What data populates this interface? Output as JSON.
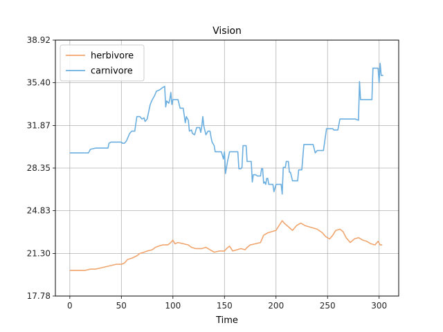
{
  "chart_data": {
    "type": "line",
    "title": "Vision",
    "xlabel": "Time",
    "ylabel": "",
    "xlim": [
      -14,
      319
    ],
    "ylim": [
      17.78,
      38.92
    ],
    "xticks": [
      0,
      50,
      100,
      150,
      200,
      250,
      300
    ],
    "yticks": [
      17.78,
      21.3,
      24.83,
      28.35,
      31.87,
      35.4,
      38.92
    ],
    "ytick_labels": [
      "17.78",
      "21.30",
      "24.83",
      "28.35",
      "31.87",
      "35.40",
      "38.92"
    ],
    "grid": true,
    "legend_position": "upper-left",
    "series": [
      {
        "name": "herbivore",
        "color": "#f0a46c",
        "points": [
          [
            0,
            19.9
          ],
          [
            10,
            19.9
          ],
          [
            15,
            19.9
          ],
          [
            20,
            20.0
          ],
          [
            25,
            20.0
          ],
          [
            30,
            20.1
          ],
          [
            35,
            20.2
          ],
          [
            40,
            20.3
          ],
          [
            45,
            20.4
          ],
          [
            50,
            20.4
          ],
          [
            53,
            20.5
          ],
          [
            56,
            20.8
          ],
          [
            60,
            20.9
          ],
          [
            65,
            21.1
          ],
          [
            68,
            21.3
          ],
          [
            72,
            21.4
          ],
          [
            75,
            21.5
          ],
          [
            80,
            21.6
          ],
          [
            83,
            21.8
          ],
          [
            86,
            21.9
          ],
          [
            90,
            22.0
          ],
          [
            95,
            22.0
          ],
          [
            98,
            22.2
          ],
          [
            100,
            22.4
          ],
          [
            102,
            22.1
          ],
          [
            105,
            22.2
          ],
          [
            110,
            22.1
          ],
          [
            115,
            22.0
          ],
          [
            118,
            21.8
          ],
          [
            122,
            21.7
          ],
          [
            128,
            21.7
          ],
          [
            132,
            21.8
          ],
          [
            136,
            21.6
          ],
          [
            140,
            21.4
          ],
          [
            145,
            21.5
          ],
          [
            150,
            21.5
          ],
          [
            152,
            21.7
          ],
          [
            155,
            21.9
          ],
          [
            158,
            21.5
          ],
          [
            162,
            21.6
          ],
          [
            166,
            21.7
          ],
          [
            170,
            21.6
          ],
          [
            172,
            21.8
          ],
          [
            175,
            22.0
          ],
          [
            180,
            22.1
          ],
          [
            185,
            22.2
          ],
          [
            188,
            22.8
          ],
          [
            192,
            23.0
          ],
          [
            196,
            23.1
          ],
          [
            200,
            23.2
          ],
          [
            203,
            23.6
          ],
          [
            206,
            24.0
          ],
          [
            208,
            23.8
          ],
          [
            212,
            23.5
          ],
          [
            216,
            23.2
          ],
          [
            220,
            23.6
          ],
          [
            224,
            23.8
          ],
          [
            228,
            23.6
          ],
          [
            232,
            23.5
          ],
          [
            236,
            23.4
          ],
          [
            240,
            23.3
          ],
          [
            245,
            23.0
          ],
          [
            248,
            22.7
          ],
          [
            252,
            22.5
          ],
          [
            255,
            22.8
          ],
          [
            258,
            23.2
          ],
          [
            262,
            23.3
          ],
          [
            265,
            23.1
          ],
          [
            268,
            22.6
          ],
          [
            272,
            22.2
          ],
          [
            276,
            22.5
          ],
          [
            280,
            22.6
          ],
          [
            284,
            22.4
          ],
          [
            288,
            22.3
          ],
          [
            292,
            22.1
          ],
          [
            296,
            22.0
          ],
          [
            299,
            22.3
          ],
          [
            301,
            22.0
          ],
          [
            303,
            22.0
          ]
        ]
      },
      {
        "name": "carnivore",
        "color": "#6aaee0",
        "points": [
          [
            0,
            29.6
          ],
          [
            18,
            29.6
          ],
          [
            20,
            29.9
          ],
          [
            25,
            30.0
          ],
          [
            37,
            30.0
          ],
          [
            38,
            30.4
          ],
          [
            40,
            30.5
          ],
          [
            50,
            30.5
          ],
          [
            51,
            30.4
          ],
          [
            53,
            30.4
          ],
          [
            55,
            30.6
          ],
          [
            58,
            31.2
          ],
          [
            60,
            31.4
          ],
          [
            63,
            31.4
          ],
          [
            65,
            32.6
          ],
          [
            68,
            32.6
          ],
          [
            70,
            32.4
          ],
          [
            72,
            32.5
          ],
          [
            73,
            32.2
          ],
          [
            75,
            32.4
          ],
          [
            78,
            33.6
          ],
          [
            80,
            34.0
          ],
          [
            82,
            34.3
          ],
          [
            84,
            34.7
          ],
          [
            87,
            34.8
          ],
          [
            90,
            35.0
          ],
          [
            92,
            35.1
          ],
          [
            93,
            33.4
          ],
          [
            94,
            33.9
          ],
          [
            96,
            33.7
          ],
          [
            97,
            34.0
          ],
          [
            98,
            34.6
          ],
          [
            99,
            33.6
          ],
          [
            100,
            34.0
          ],
          [
            105,
            34.0
          ],
          [
            107,
            33.3
          ],
          [
            110,
            33.3
          ],
          [
            112,
            32.1
          ],
          [
            113,
            32.6
          ],
          [
            115,
            32.3
          ],
          [
            116,
            31.4
          ],
          [
            118,
            31.5
          ],
          [
            119,
            31.2
          ],
          [
            121,
            31.1
          ],
          [
            123,
            31.7
          ],
          [
            126,
            31.7
          ],
          [
            127,
            31.3
          ],
          [
            128,
            31.8
          ],
          [
            129,
            32.6
          ],
          [
            130,
            31.8
          ],
          [
            132,
            31.1
          ],
          [
            134,
            31.4
          ],
          [
            136,
            31.4
          ],
          [
            137,
            30.9
          ],
          [
            138,
            30.5
          ],
          [
            140,
            30.2
          ],
          [
            141,
            29.7
          ],
          [
            147,
            29.7
          ],
          [
            149,
            29.1
          ],
          [
            150,
            29.7
          ],
          [
            151,
            27.9
          ],
          [
            153,
            28.9
          ],
          [
            155,
            29.7
          ],
          [
            163,
            29.7
          ],
          [
            164,
            28.3
          ],
          [
            166,
            28.3
          ],
          [
            167,
            28.4
          ],
          [
            168,
            30.2
          ],
          [
            171,
            30.2
          ],
          [
            172,
            28.9
          ],
          [
            176,
            28.9
          ],
          [
            177,
            27.2
          ],
          [
            178,
            27.8
          ],
          [
            180,
            27.8
          ],
          [
            182,
            27.7
          ],
          [
            185,
            27.7
          ],
          [
            186,
            28.3
          ],
          [
            187,
            28.3
          ],
          [
            188,
            27.1
          ],
          [
            189,
            27.2
          ],
          [
            190,
            27.0
          ],
          [
            191,
            27.5
          ],
          [
            192,
            27.5
          ],
          [
            193,
            27.0
          ],
          [
            197,
            27.0
          ],
          [
            198,
            26.4
          ],
          [
            200,
            27.0
          ],
          [
            205,
            27.0
          ],
          [
            206,
            26.2
          ],
          [
            207,
            28.4
          ],
          [
            209,
            28.4
          ],
          [
            210,
            28.9
          ],
          [
            212,
            28.9
          ],
          [
            213,
            28.0
          ],
          [
            214,
            28.0
          ],
          [
            216,
            27.3
          ],
          [
            221,
            27.3
          ],
          [
            222,
            28.2
          ],
          [
            225,
            28.2
          ],
          [
            227,
            30.3
          ],
          [
            236,
            30.3
          ],
          [
            238,
            29.6
          ],
          [
            240,
            29.8
          ],
          [
            246,
            29.8
          ],
          [
            249,
            31.6
          ],
          [
            255,
            31.6
          ],
          [
            256,
            31.5
          ],
          [
            260,
            31.5
          ],
          [
            262,
            32.4
          ],
          [
            270,
            32.4
          ],
          [
            277,
            32.4
          ],
          [
            280,
            32.3
          ],
          [
            281,
            35.5
          ],
          [
            282,
            34.0
          ],
          [
            286,
            34.0
          ],
          [
            293,
            34.0
          ],
          [
            294,
            36.6
          ],
          [
            299,
            36.6
          ],
          [
            300,
            35.4
          ],
          [
            301,
            37.0
          ],
          [
            302,
            36.0
          ],
          [
            304,
            36.0
          ]
        ]
      }
    ]
  }
}
